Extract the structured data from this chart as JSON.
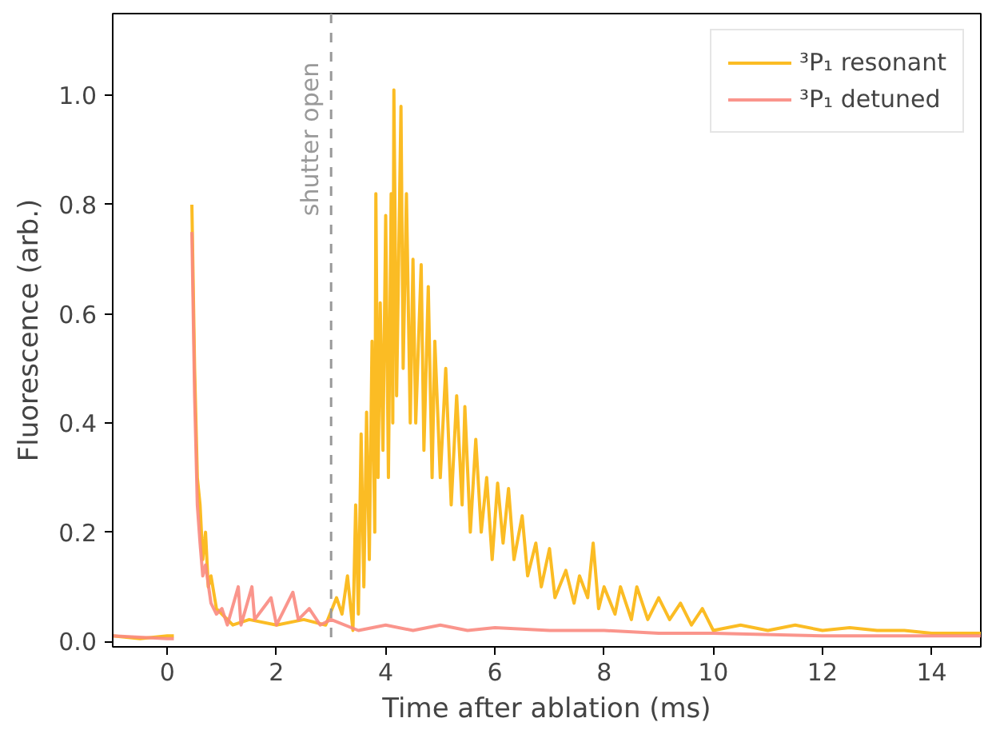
{
  "chart_data": {
    "type": "line",
    "xlabel": "Time after ablation (ms)",
    "ylabel": "Fluorescence (arb.)",
    "xlim": [
      -1,
      14.9
    ],
    "ylim": [
      -0.01,
      1.15
    ],
    "xticks": [
      0,
      2,
      4,
      6,
      8,
      10,
      12,
      14
    ],
    "yticks": [
      {
        "value": 0,
        "label": "0.0"
      },
      0.2,
      0.4,
      0.6,
      0.8,
      {
        "value": 1,
        "label": "1.0"
      }
    ],
    "grid": false,
    "legend": "top right",
    "line_style": "solid",
    "ref_lines": [
      {
        "axis": "x",
        "value": 3,
        "label": "shutter open",
        "color": "#999999",
        "line_style": "dashed"
      }
    ],
    "series": [
      {
        "name": "³P₁ resonant",
        "color": "#fbbc24",
        "x": [
          -1,
          -0.5,
          0,
          0.12,
          0.14,
          0.38,
          0.45,
          0.5,
          0.55,
          0.6,
          0.65,
          0.7,
          0.75,
          0.8,
          0.9,
          1.0,
          1.2,
          1.5,
          2.0,
          2.5,
          2.9,
          3.1,
          3.2,
          3.3,
          3.4,
          3.45,
          3.5,
          3.55,
          3.6,
          3.65,
          3.7,
          3.75,
          3.8,
          3.82,
          3.86,
          3.9,
          3.95,
          4.0,
          4.05,
          4.1,
          4.13,
          4.15,
          4.2,
          4.28,
          4.32,
          4.38,
          4.45,
          4.5,
          4.55,
          4.65,
          4.7,
          4.78,
          4.85,
          4.9,
          5.0,
          5.1,
          5.2,
          5.3,
          5.4,
          5.45,
          5.55,
          5.65,
          5.75,
          5.85,
          5.95,
          6.05,
          6.15,
          6.25,
          6.35,
          6.5,
          6.6,
          6.75,
          6.85,
          7.0,
          7.1,
          7.3,
          7.45,
          7.55,
          7.7,
          7.8,
          7.9,
          8.0,
          8.2,
          8.3,
          8.5,
          8.6,
          8.8,
          9.0,
          9.2,
          9.4,
          9.6,
          9.8,
          10.0,
          10.5,
          11,
          11.5,
          12,
          12.5,
          13,
          13.5,
          14,
          14.9
        ],
        "values": [
          0.01,
          0.005,
          0.01,
          0.01,
          null,
          null,
          0.8,
          0.5,
          0.3,
          0.25,
          0.15,
          0.2,
          0.1,
          0.12,
          0.06,
          0.05,
          0.03,
          0.04,
          0.03,
          0.04,
          0.03,
          0.08,
          0.05,
          0.12,
          0.02,
          0.25,
          0.05,
          0.38,
          0.1,
          0.42,
          0.15,
          0.55,
          0.2,
          0.82,
          0.3,
          0.62,
          0.35,
          0.78,
          0.3,
          0.82,
          0.4,
          1.01,
          0.45,
          0.98,
          0.5,
          0.82,
          0.4,
          0.7,
          0.4,
          0.69,
          0.35,
          0.65,
          0.3,
          0.55,
          0.3,
          0.5,
          0.25,
          0.45,
          0.25,
          0.43,
          0.2,
          0.37,
          0.2,
          0.3,
          0.15,
          0.29,
          0.18,
          0.28,
          0.15,
          0.23,
          0.12,
          0.18,
          0.1,
          0.17,
          0.08,
          0.13,
          0.07,
          0.12,
          0.08,
          0.18,
          0.06,
          0.1,
          0.05,
          0.1,
          0.04,
          0.1,
          0.04,
          0.08,
          0.04,
          0.07,
          0.03,
          0.06,
          0.02,
          0.03,
          0.02,
          0.03,
          0.02,
          0.025,
          0.02,
          0.02,
          0.015,
          0.015
        ]
      },
      {
        "name": "³P₁ detuned",
        "color": "#fa8a80",
        "x": [
          -1,
          0,
          0.12,
          0.13,
          0.4,
          0.45,
          0.5,
          0.55,
          0.6,
          0.65,
          0.7,
          0.8,
          0.9,
          1.0,
          1.1,
          1.3,
          1.35,
          1.55,
          1.6,
          1.9,
          2.0,
          2.3,
          2.4,
          2.6,
          2.8,
          3.0,
          3.5,
          4,
          4.5,
          5,
          5.5,
          6,
          7,
          8,
          9,
          10,
          12,
          14.9
        ],
        "values": [
          0.01,
          0.005,
          0.005,
          null,
          null,
          0.75,
          0.45,
          0.25,
          0.18,
          0.12,
          0.14,
          0.07,
          0.05,
          0.06,
          0.03,
          0.1,
          0.03,
          0.1,
          0.04,
          0.08,
          0.03,
          0.09,
          0.04,
          0.06,
          0.03,
          0.04,
          0.02,
          0.03,
          0.02,
          0.03,
          0.02,
          0.025,
          0.02,
          0.02,
          0.015,
          0.015,
          0.01,
          0.01
        ]
      }
    ]
  }
}
